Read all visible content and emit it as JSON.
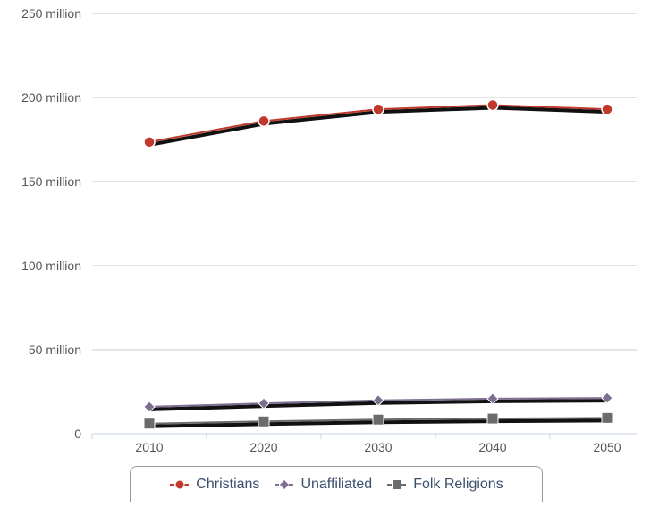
{
  "chart_data": {
    "type": "line",
    "title": "",
    "xlabel": "",
    "ylabel": "",
    "x": [
      "2010",
      "2020",
      "2030",
      "2040",
      "2050"
    ],
    "y_ticks": [
      "0",
      "50 million",
      "100 million",
      "150 million",
      "200 million",
      "250 million"
    ],
    "y_tick_values": [
      0,
      50000000,
      100000000,
      150000000,
      200000000,
      250000000
    ],
    "ylim": [
      0,
      250000000
    ],
    "grid": "horizontal",
    "legend_position": "bottom-center",
    "series": [
      {
        "name": "Christians",
        "marker": "circle",
        "color": "#c0392b",
        "values": [
          173500000,
          186000000,
          193000000,
          195500000,
          193000000
        ]
      },
      {
        "name": "Unaffiliated",
        "marker": "diamond",
        "color": "#7d6f8f",
        "values": [
          16000000,
          18000000,
          19800000,
          20800000,
          21200000
        ]
      },
      {
        "name": "Folk Religions",
        "marker": "square",
        "color": "#6b6b6b",
        "values": [
          6000000,
          7300000,
          8400000,
          9000000,
          9400000
        ]
      }
    ]
  }
}
